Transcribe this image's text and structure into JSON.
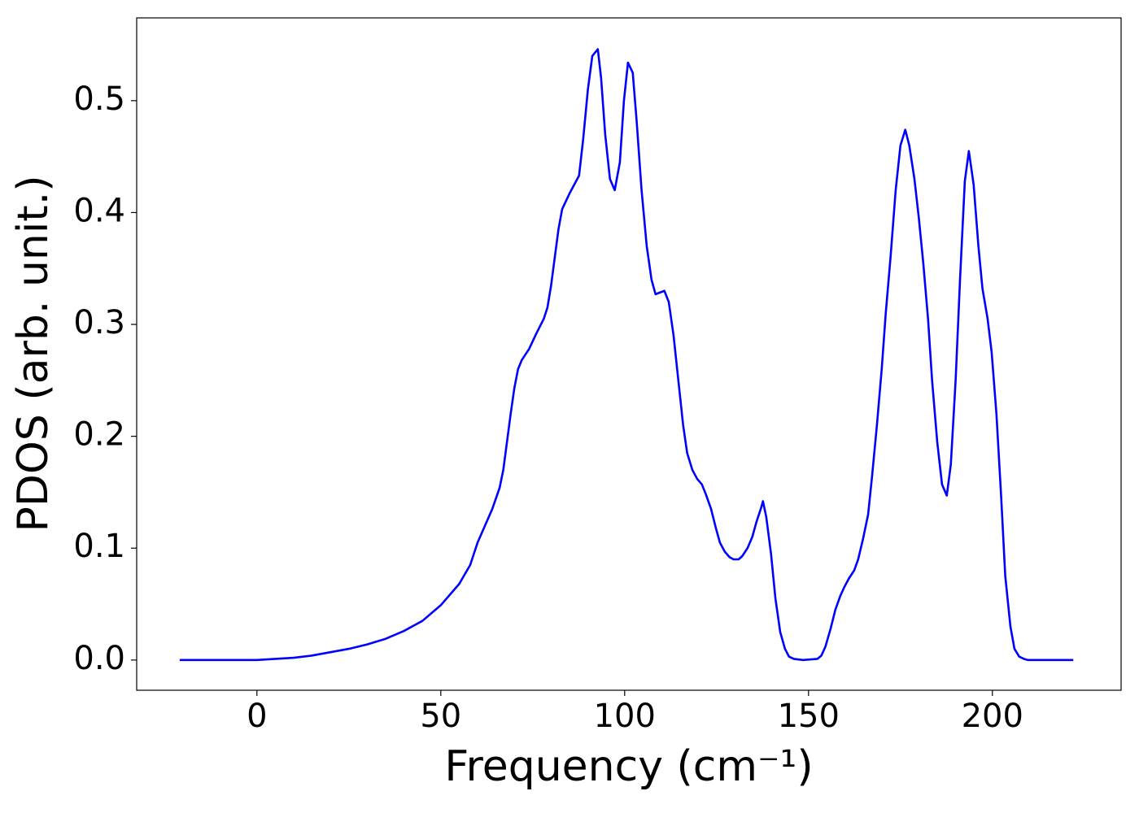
{
  "chart_data": {
    "type": "line",
    "xlabel": "Frequency (cm⁻¹)",
    "ylabel": "PDOS (arb. unit.)",
    "x": [
      -21,
      0,
      5,
      10,
      15,
      20,
      25,
      30,
      35,
      40,
      45,
      50,
      55,
      58,
      60,
      62,
      64,
      66,
      67,
      68,
      69,
      70,
      71,
      72,
      74,
      76,
      78,
      79,
      80,
      81,
      82,
      83,
      84,
      85,
      87.6,
      88.7,
      90,
      91.2,
      92.7,
      93.6,
      94.7,
      96,
      97.3,
      98.7,
      99.8,
      100.9,
      102.2,
      103.3,
      104.6,
      106,
      107.3,
      108.4,
      110.8,
      112,
      113.3,
      114.6,
      115.9,
      117,
      118.4,
      119.7,
      121,
      122.1,
      123.5,
      124.8,
      125.9,
      127.2,
      128.5,
      129.6,
      131,
      132,
      133.4,
      134.7,
      135.8,
      137.2,
      137.6,
      138.5,
      139.8,
      141,
      142.3,
      143.6,
      144.7,
      146,
      148.5,
      152.4,
      153.5,
      154.6,
      156,
      157.3,
      158.6,
      159.7,
      161,
      162.4,
      163.5,
      164.8,
      166.2,
      167.3,
      168.6,
      169.9,
      171,
      172.3,
      173.7,
      175,
      176.3,
      177.4,
      178.8,
      180,
      181.2,
      182.5,
      183.6,
      185,
      186.3,
      187.6,
      188.7,
      190,
      191.2,
      192.5,
      193.6,
      194.9,
      196.2,
      197.3,
      198.7,
      199.8,
      201.1,
      202.4,
      203.5,
      204.9,
      206,
      207.3,
      208.6,
      209.7,
      222
    ],
    "series": [
      {
        "name": "PDOS",
        "color": "#0000ff",
        "values": [
          0,
          0,
          0.001,
          0.002,
          0.004,
          0.007,
          0.01,
          0.014,
          0.019,
          0.026,
          0.035,
          0.049,
          0.068,
          0.085,
          0.105,
          0.12,
          0.135,
          0.154,
          0.17,
          0.195,
          0.22,
          0.243,
          0.26,
          0.268,
          0.278,
          0.292,
          0.305,
          0.315,
          0.335,
          0.36,
          0.385,
          0.403,
          0.41,
          0.417,
          0.433,
          0.465,
          0.51,
          0.54,
          0.546,
          0.52,
          0.47,
          0.43,
          0.42,
          0.445,
          0.5,
          0.534,
          0.525,
          0.48,
          0.42,
          0.37,
          0.34,
          0.327,
          0.33,
          0.32,
          0.29,
          0.25,
          0.21,
          0.185,
          0.17,
          0.162,
          0.157,
          0.148,
          0.135,
          0.118,
          0.105,
          0.097,
          0.092,
          0.09,
          0.09,
          0.093,
          0.1,
          0.11,
          0.123,
          0.137,
          0.142,
          0.128,
          0.095,
          0.055,
          0.025,
          0.01,
          0.003,
          0.001,
          0,
          0.001,
          0.004,
          0.012,
          0.028,
          0.045,
          0.057,
          0.065,
          0.073,
          0.08,
          0.09,
          0.108,
          0.13,
          0.165,
          0.21,
          0.26,
          0.31,
          0.36,
          0.42,
          0.46,
          0.474,
          0.46,
          0.43,
          0.395,
          0.355,
          0.305,
          0.25,
          0.195,
          0.157,
          0.147,
          0.175,
          0.25,
          0.34,
          0.428,
          0.455,
          0.425,
          0.37,
          0.332,
          0.305,
          0.275,
          0.22,
          0.145,
          0.075,
          0.03,
          0.01,
          0.003,
          0.001,
          0,
          0
        ]
      }
    ],
    "xlim": [
      -32.7,
      235
    ],
    "xticks": [
      0,
      50,
      100,
      150,
      200
    ],
    "ylim": [
      -0.027,
      0.574
    ],
    "yticks": [
      {
        "value": 0,
        "label": "0.0"
      },
      0.1,
      0.2,
      0.3,
      0.4,
      0.5
    ]
  }
}
